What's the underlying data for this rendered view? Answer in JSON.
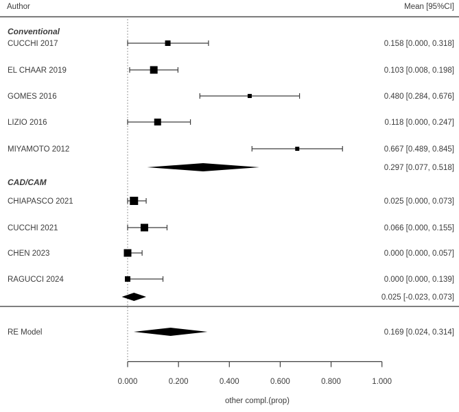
{
  "header": {
    "left": "Author",
    "right": "Mean [95%CI]"
  },
  "colors": {
    "marker": "#000000",
    "line": "#3c3c3c",
    "text": "#3b3b3b",
    "header_rule": "#4a4a4a",
    "section_rule": "#7f7f7f",
    "reference_dotted": "#909090"
  },
  "chart_data": {
    "type": "forest",
    "title": "",
    "xlabel": "other compl.(prop)",
    "ylabel": "",
    "xlim": [
      0.0,
      1.0
    ],
    "x_ticks": [
      0.0,
      0.2,
      0.4,
      0.6,
      0.8,
      1.0
    ],
    "x_tick_labels": [
      "0.000",
      "0.200",
      "0.400",
      "0.600",
      "0.800",
      "1.000"
    ],
    "reference_line": 0.0,
    "legend": "none",
    "grid": false,
    "rows": [
      {
        "type": "subgroup",
        "label": "Conventional"
      },
      {
        "type": "study",
        "label": "CUCCHI 2017",
        "est": 0.158,
        "lo": 0.0,
        "hi": 0.318,
        "weight": 8,
        "value_text": "0.158 [0.000, 0.318]"
      },
      {
        "type": "study",
        "label": "EL CHAAR 2019",
        "est": 0.103,
        "lo": 0.008,
        "hi": 0.198,
        "weight": 11,
        "value_text": "0.103 [0.008, 0.198]"
      },
      {
        "type": "study",
        "label": "GOMES 2016",
        "est": 0.48,
        "lo": 0.284,
        "hi": 0.676,
        "weight": 6,
        "value_text": "0.480 [0.284, 0.676]"
      },
      {
        "type": "study",
        "label": "LIZIO 2016",
        "est": 0.118,
        "lo": 0.0,
        "hi": 0.247,
        "weight": 10,
        "value_text": "0.118 [0.000, 0.247]"
      },
      {
        "type": "study",
        "label": "MIYAMOTO 2012",
        "est": 0.667,
        "lo": 0.489,
        "hi": 0.845,
        "weight": 6,
        "value_text": "0.667 [0.489, 0.845]"
      },
      {
        "type": "summary",
        "label": "",
        "est": 0.297,
        "lo": 0.077,
        "hi": 0.518,
        "value_text": "0.297 [0.077, 0.518]"
      },
      {
        "type": "subgroup",
        "label": "CAD/CAM"
      },
      {
        "type": "study",
        "label": "CHIAPASCO 2021",
        "est": 0.025,
        "lo": 0.0,
        "hi": 0.073,
        "weight": 12,
        "value_text": "0.025 [0.000, 0.073]"
      },
      {
        "type": "study",
        "label": "CUCCHI 2021",
        "est": 0.066,
        "lo": 0.0,
        "hi": 0.155,
        "weight": 11,
        "value_text": "0.066 [0.000, 0.155]"
      },
      {
        "type": "study",
        "label": "CHEN  2023",
        "est": 0.0,
        "lo": 0.0,
        "hi": 0.057,
        "weight": 11,
        "value_text": "0.000 [0.000, 0.057]"
      },
      {
        "type": "study",
        "label": "RAGUCCI 2024",
        "est": 0.0,
        "lo": 0.0,
        "hi": 0.139,
        "weight": 8,
        "value_text": "0.000 [0.000, 0.139]"
      },
      {
        "type": "summary",
        "label": "",
        "est": 0.025,
        "lo": -0.023,
        "hi": 0.073,
        "value_text": "0.025 [-0.023, 0.073]"
      },
      {
        "type": "summary",
        "label": "RE Model",
        "est": 0.169,
        "lo": 0.024,
        "hi": 0.314,
        "value_text": "0.169 [0.024, 0.314]"
      }
    ]
  }
}
